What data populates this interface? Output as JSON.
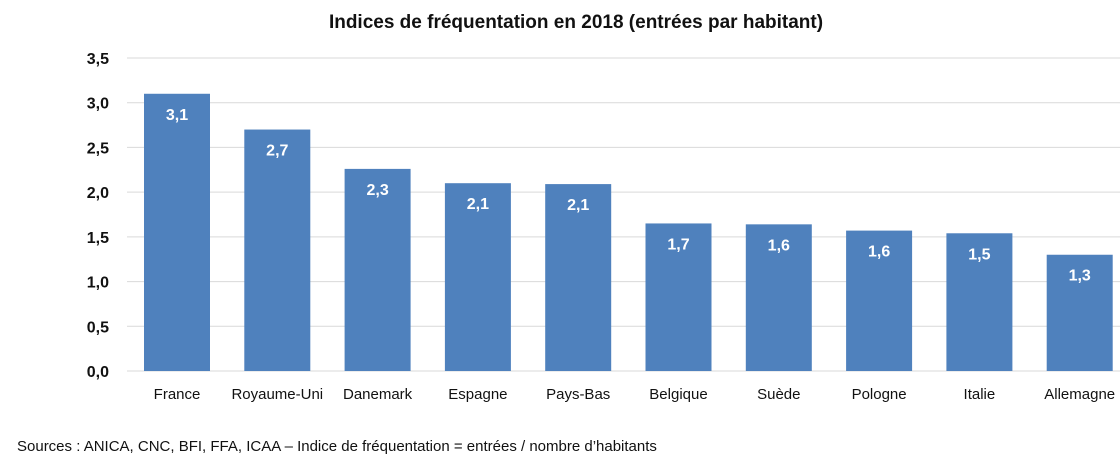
{
  "chart_data": {
    "type": "bar",
    "title": "Indices de fréquentation en 2018 (entrées par habitant)",
    "xlabel": "",
    "ylabel": "",
    "categories": [
      "France",
      "Royaume-Uni",
      "Danemark",
      "Espagne",
      "Pays-Bas",
      "Belgique",
      "Suède",
      "Pologne",
      "Italie",
      "Allemagne"
    ],
    "values": [
      3.1,
      2.7,
      2.26,
      2.1,
      2.09,
      1.65,
      1.64,
      1.57,
      1.54,
      1.3
    ],
    "data_labels": [
      "3,1",
      "2,7",
      "2,3",
      "2,1",
      "2,1",
      "1,7",
      "1,6",
      "1,6",
      "1,5",
      "1,3"
    ],
    "ylim": [
      0,
      3.5
    ],
    "yticks": [
      0,
      0.5,
      1.0,
      1.5,
      2.0,
      2.5,
      3.0,
      3.5
    ],
    "ytick_labels": [
      "0,0",
      "0,5",
      "1,0",
      "1,5",
      "2,0",
      "2,5",
      "3,0",
      "3,5"
    ],
    "bar_color": "#4f81bd",
    "grid": true,
    "legend": "none"
  },
  "footer": {
    "source": "Sources : ANICA, CNC, BFI, FFA, ICAA – Indice de fréquentation = entrées / nombre d’habitants"
  }
}
